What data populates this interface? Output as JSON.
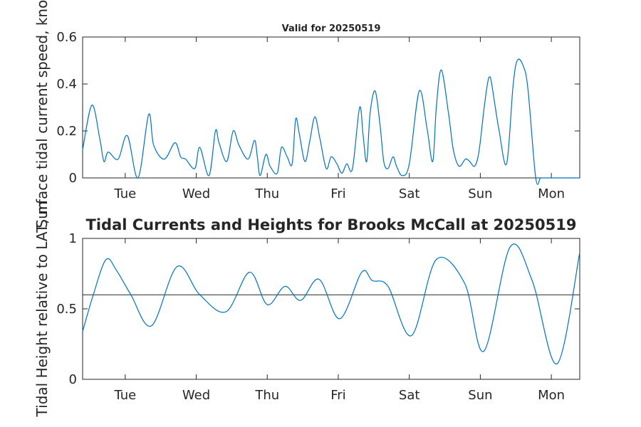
{
  "chart_data": [
    {
      "type": "line",
      "title": "Valid for 20250519",
      "ylabel": "Surface tidal current speed, knots",
      "xlabel": "",
      "ylim": [
        0,
        0.6
      ],
      "yticks": [
        0,
        0.2,
        0.4,
        0.6
      ],
      "ytick_labels": [
        "0",
        "0.2",
        "0.4",
        "0.6"
      ],
      "xlim_days": [
        0,
        7
      ],
      "xticks_days": [
        0.6,
        1.6,
        2.6,
        3.6,
        4.6,
        5.6,
        6.6
      ],
      "xtick_labels": [
        "Tue",
        "Wed",
        "Thu",
        "Fri",
        "Sat",
        "Sun",
        "Mon"
      ],
      "grid": false,
      "line_color": "#0072bd",
      "series": [
        {
          "x": [
            0.0,
            0.13,
            0.24,
            0.3,
            0.36,
            0.5,
            0.63,
            0.78,
            0.93,
            1.0,
            1.15,
            1.3,
            1.38,
            1.45,
            1.58,
            1.65,
            1.78,
            1.87,
            1.92,
            2.03,
            2.12,
            2.2,
            2.33,
            2.42,
            2.46,
            2.5,
            2.58,
            2.64,
            2.74,
            2.8,
            2.88,
            2.95,
            3.0,
            3.05,
            3.13,
            3.2,
            3.27,
            3.34,
            3.43,
            3.5,
            3.58,
            3.65,
            3.72,
            3.8,
            3.9,
            3.95,
            4.0,
            4.05,
            4.12,
            4.19,
            4.24,
            4.3,
            4.37,
            4.42,
            4.5,
            4.6,
            4.74,
            4.85,
            4.93,
            4.98,
            5.05,
            5.15,
            5.22,
            5.3,
            5.39,
            5.45,
            5.52,
            5.58,
            5.65,
            5.7,
            5.73,
            5.76,
            5.86,
            5.97,
            6.06,
            6.12,
            6.2,
            6.27,
            6.38,
            6.45,
            6.53,
            6.63,
            6.72,
            6.78,
            6.85,
            6.9,
            6.93,
            7.0
          ],
          "y": [
            0.12,
            0.31,
            0.17,
            0.07,
            0.11,
            0.08,
            0.18,
            0.0,
            0.27,
            0.14,
            0.08,
            0.15,
            0.09,
            0.08,
            0.04,
            0.13,
            0.01,
            0.2,
            0.15,
            0.07,
            0.2,
            0.14,
            0.08,
            0.16,
            0.09,
            0.01,
            0.1,
            0.05,
            0.02,
            0.13,
            0.09,
            0.06,
            0.25,
            0.19,
            0.07,
            0.16,
            0.26,
            0.17,
            0.04,
            0.09,
            0.06,
            0.02,
            0.06,
            0.04,
            0.3,
            0.18,
            0.07,
            0.28,
            0.37,
            0.22,
            0.07,
            0.04,
            0.09,
            0.05,
            0.01,
            0.06,
            0.37,
            0.21,
            0.07,
            0.3,
            0.46,
            0.28,
            0.12,
            0.05,
            0.08,
            0.07,
            0.05,
            0.11,
            0.29,
            0.4,
            0.43,
            0.4,
            0.21,
            0.06,
            0.39,
            0.5,
            0.48,
            0.38,
            0.0,
            0.0,
            0.0,
            0.0,
            0.0,
            0.0,
            0.0,
            0.0,
            0.0,
            0.0
          ]
        }
      ]
    },
    {
      "type": "line",
      "title": "Tidal Currents and Heights for Brooks McCall at 20250519",
      "ylabel": "Tidal Height relative to LAT, m",
      "xlabel": "",
      "ylim": [
        0,
        1
      ],
      "yticks": [
        0,
        0.5,
        1
      ],
      "ytick_labels": [
        "0",
        "0.5",
        "1"
      ],
      "xlim_days": [
        0,
        7
      ],
      "xticks_days": [
        0.6,
        1.6,
        2.6,
        3.6,
        4.6,
        5.6,
        6.6
      ],
      "xtick_labels": [
        "Tue",
        "Wed",
        "Thu",
        "Fri",
        "Sat",
        "Sun",
        "Mon"
      ],
      "grid": false,
      "line_color": "#0072bd",
      "reference_line": {
        "y": 0.6,
        "color": "#262626"
      },
      "series": [
        {
          "x": [
            0.0,
            0.15,
            0.33,
            0.48,
            0.68,
            0.97,
            1.33,
            1.65,
            2.02,
            2.35,
            2.6,
            2.85,
            3.07,
            3.33,
            3.62,
            3.93,
            4.08,
            4.3,
            4.63,
            4.98,
            5.38,
            5.65,
            6.02,
            6.33,
            6.68,
            7.0
          ],
          "y": [
            0.34,
            0.6,
            0.85,
            0.77,
            0.6,
            0.38,
            0.8,
            0.6,
            0.48,
            0.76,
            0.53,
            0.66,
            0.56,
            0.71,
            0.43,
            0.76,
            0.7,
            0.66,
            0.31,
            0.85,
            0.68,
            0.2,
            0.94,
            0.7,
            0.11,
            0.9
          ]
        }
      ]
    }
  ]
}
